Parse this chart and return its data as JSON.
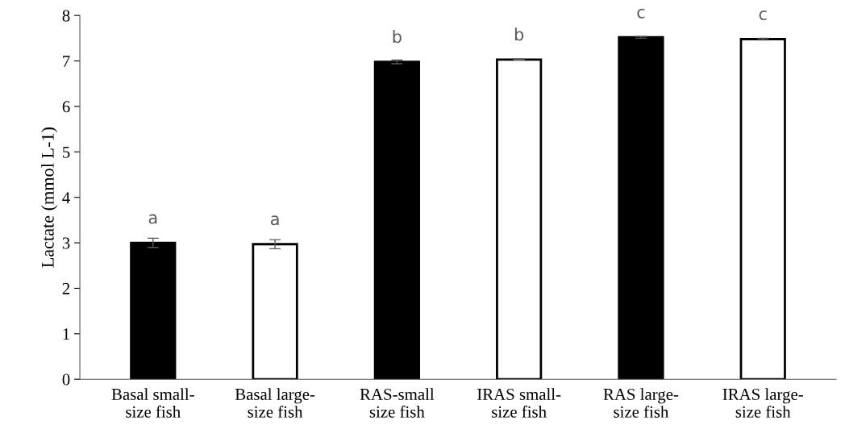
{
  "chart_data": {
    "type": "bar",
    "ylabel": "Lactate (mmol L-1)",
    "categories": [
      "Basal small-\nsize fish",
      "Basal large-\nsize fish",
      "RAS-small\nsize fish",
      "IRAS small-\nsize fish",
      "RAS large-\nsize fish",
      "IRAS large-\nsize fish"
    ],
    "values": [
      3.0,
      2.97,
      6.98,
      7.03,
      7.52,
      7.48
    ],
    "errors": [
      0.1,
      0.1,
      0.04,
      0.01,
      0.02,
      0.02
    ],
    "colors": [
      "#000000",
      "#ffffff",
      "#000000",
      "#ffffff",
      "#000000",
      "#ffffff"
    ],
    "ylim": [
      0,
      8
    ],
    "yticks": [
      0,
      1,
      2,
      3,
      4,
      5,
      6,
      7,
      8
    ],
    "grid": false,
    "legend": false,
    "annotations": [
      {
        "text": "a",
        "x": "Basal small-\nsize fish",
        "y": 3.0
      },
      {
        "text": "a",
        "x": "Basal large-\nsize fish",
        "y": 2.97
      },
      {
        "text": "b",
        "x": "RAS-small\nsize fish",
        "y": 6.98
      },
      {
        "text": "b",
        "x": "IRAS small-\nsize fish",
        "y": 7.03
      },
      {
        "text": "c",
        "x": "RAS large-\nsize fish",
        "y": 7.52
      },
      {
        "text": "c",
        "x": "IRAS large-\nsize fish",
        "y": 7.48
      }
    ]
  }
}
